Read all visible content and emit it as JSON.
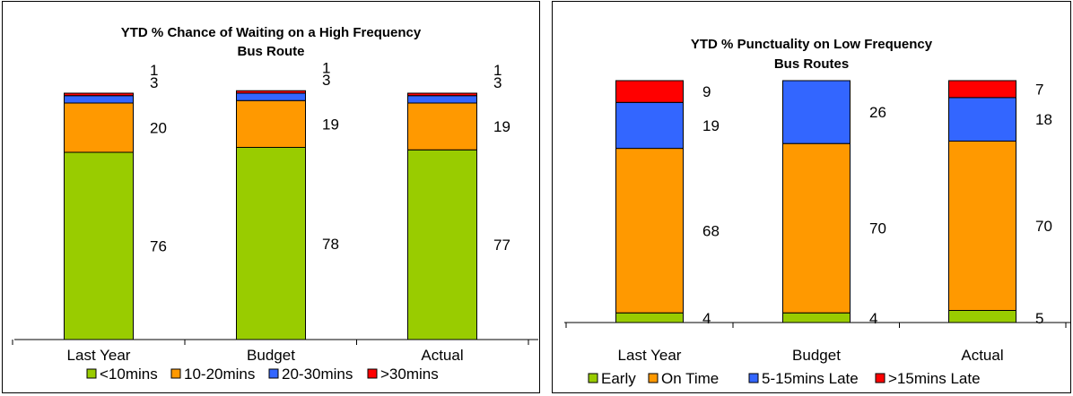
{
  "chart_data": [
    {
      "type": "bar",
      "stacked": true,
      "title": [
        "YTD % Chance of Waiting on a High Frequency",
        "Bus Route"
      ],
      "categories": [
        "Last Year",
        "Budget",
        "Actual"
      ],
      "series": [
        {
          "name": "<10mins",
          "color": "#99cc00",
          "values": [
            76,
            78,
            77
          ]
        },
        {
          "name": "10-20mins",
          "color": "#ff9900",
          "values": [
            20,
            19,
            19
          ]
        },
        {
          "name": "20-30mins",
          "color": "#3366ff",
          "values": [
            3,
            3,
            3
          ]
        },
        {
          "name": ">30mins",
          "color": "#ff0000",
          "values": [
            1,
            1,
            1
          ]
        }
      ],
      "ylim": [
        0,
        100
      ],
      "legend": "bottom",
      "grid": false
    },
    {
      "type": "bar",
      "stacked": true,
      "title": [
        "YTD % Punctuality on Low Frequency",
        "Bus Routes"
      ],
      "categories": [
        "Last Year",
        "Budget",
        "Actual"
      ],
      "series": [
        {
          "name": "Early",
          "color": "#99cc00",
          "values": [
            4,
            4,
            5
          ]
        },
        {
          "name": "On Time",
          "color": "#ff9900",
          "values": [
            68,
            70,
            70
          ]
        },
        {
          "name": "5-15mins Late",
          "color": "#3366ff",
          "values": [
            19,
            26,
            18
          ]
        },
        {
          "name": ">15mins Late",
          "color": "#ff0000",
          "values": [
            9,
            null,
            7
          ]
        }
      ],
      "ylim": [
        0,
        100
      ],
      "legend": "bottom",
      "grid": false
    }
  ]
}
